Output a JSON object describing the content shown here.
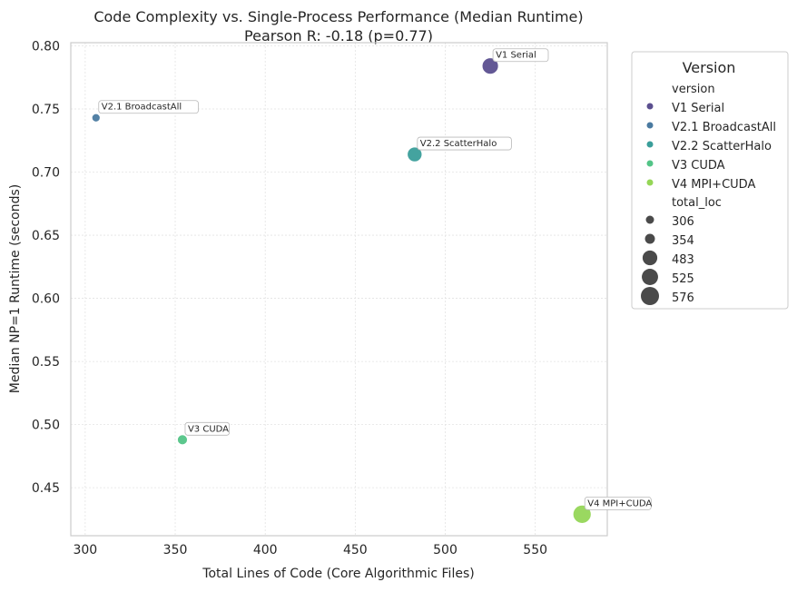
{
  "chart_data": {
    "type": "scatter",
    "title": "Code Complexity vs. Single-Process Performance (Median Runtime)",
    "subtitle": "Pearson R: -0.18 (p=0.77)",
    "xlabel": "Total Lines of Code (Core Algorithmic Files)",
    "ylabel": "Median NP=1 Runtime (seconds)",
    "xlim": [
      292,
      590
    ],
    "ylim": [
      0.412,
      0.8025
    ],
    "xticks": [
      300,
      350,
      400,
      450,
      500,
      550
    ],
    "yticks": [
      0.45,
      0.5,
      0.55,
      0.6,
      0.65,
      0.7,
      0.75,
      0.8
    ],
    "grid": true,
    "legend_placement": "outside-right",
    "points": [
      {
        "version": "V1 Serial",
        "x": 525,
        "y": 0.784,
        "total_loc": 525,
        "color": "#5b4f8f"
      },
      {
        "version": "V2.1 BroadcastAll",
        "x": 306,
        "y": 0.743,
        "total_loc": 306,
        "color": "#4a7aa0"
      },
      {
        "version": "V2.2 ScatterHalo",
        "x": 483,
        "y": 0.714,
        "total_loc": 483,
        "color": "#3a9e9a"
      },
      {
        "version": "V3 CUDA",
        "x": 354,
        "y": 0.488,
        "total_loc": 354,
        "color": "#53c487"
      },
      {
        "version": "V4 MPI+CUDA",
        "x": 576,
        "y": 0.429,
        "total_loc": 576,
        "color": "#95d657"
      }
    ],
    "legend": {
      "title": "Version",
      "hue_header": "version",
      "size_header": "total_loc",
      "size_entries": [
        306,
        354,
        483,
        525,
        576
      ],
      "size_color": "#4a4a4a"
    }
  }
}
